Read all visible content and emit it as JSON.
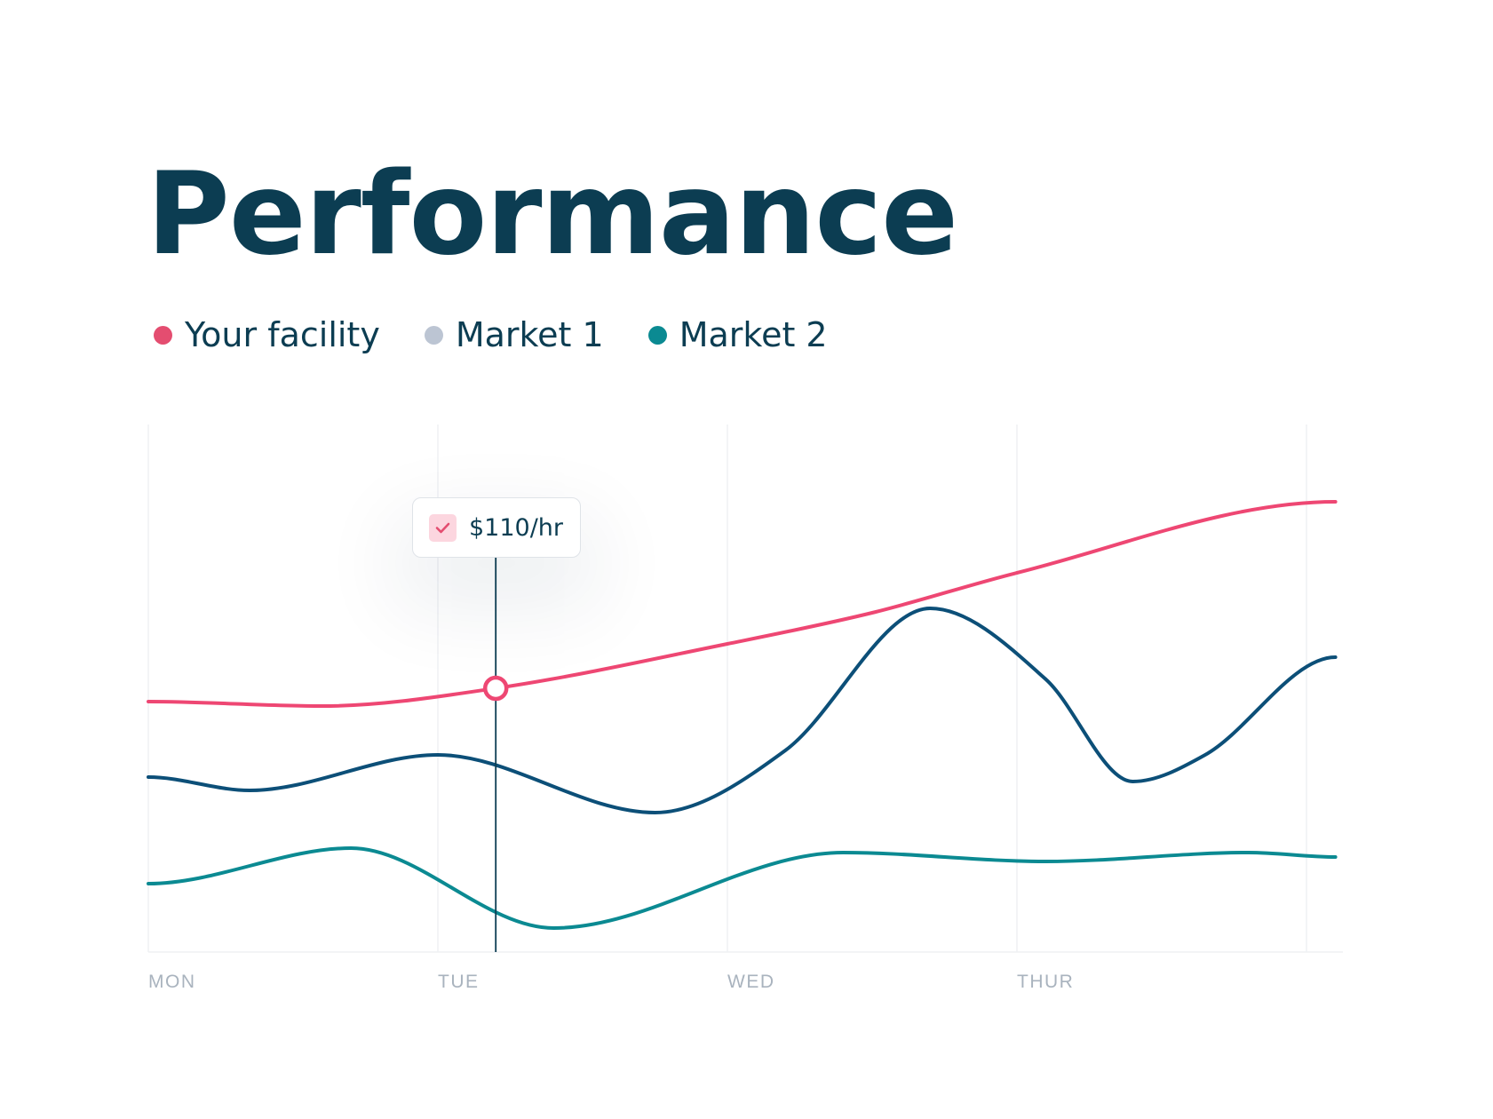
{
  "title": "Performance",
  "colors": {
    "title": "#0c3d52",
    "your_facility": "#ee4773",
    "market1": "#0c4f78",
    "market2": "#0b8a92",
    "market1_legend_dot": "#bcc5d3",
    "grid": "#eff1f4",
    "axis_label": "#a9b3be"
  },
  "tooltip": {
    "value": "$110/hr",
    "icon": "check-icon"
  },
  "chart_data": {
    "type": "line",
    "title": "Performance",
    "categories": [
      "MON",
      "TUE",
      "WED",
      "THUR"
    ],
    "legend": [
      "Your facility",
      "Market 1",
      "Market 2"
    ],
    "legend_position": "top-left",
    "grid": "vertical",
    "series": [
      {
        "name": "Your facility",
        "x": [
          0,
          0.6,
          1.2,
          2.0,
          2.5,
          3.0,
          4.1
        ],
        "values": [
          55,
          54,
          58,
          68,
          75,
          84,
          100
        ]
      },
      {
        "name": "Market 1",
        "x": [
          0,
          0.35,
          1.0,
          1.75,
          2.2,
          2.7,
          3.1,
          3.4,
          3.65,
          4.1
        ],
        "values": [
          38,
          35,
          43,
          30,
          44,
          76,
          60,
          37,
          43,
          65
        ]
      },
      {
        "name": "Market 2",
        "x": [
          0,
          0.7,
          1.4,
          2.4,
          3.1,
          3.8,
          4.1
        ],
        "values": [
          14,
          22,
          4,
          21,
          19,
          21,
          20
        ]
      }
    ],
    "highlight": {
      "series": "Your facility",
      "x": 1.2,
      "value": 58,
      "label": "$110/hr"
    }
  }
}
